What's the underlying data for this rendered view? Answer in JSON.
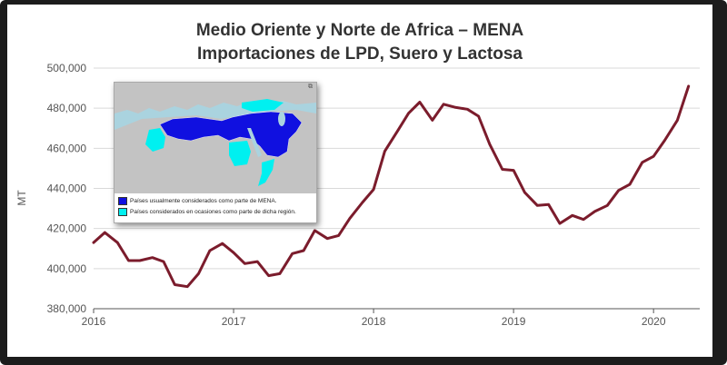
{
  "colors": {
    "line": "#7b1c2c",
    "grid": "#d9d9d9",
    "mena_core": "#1010e0",
    "mena_sometimes": "#00f0f0",
    "land": "#c3c3c3",
    "sea": "#aad3df"
  },
  "chart_data": {
    "type": "line",
    "title": "Medio Oriente y Norte de Africa – MENA",
    "subtitle": "Importaciones de LPD, Suero y Lactosa",
    "xlabel": "",
    "ylabel": "MT",
    "ylim": [
      380000,
      500000
    ],
    "yticks": [
      380000,
      400000,
      420000,
      440000,
      460000,
      480000,
      500000
    ],
    "ytick_labels": [
      "380,000",
      "400,000",
      "420,000",
      "440,000",
      "460,000",
      "480,000",
      "500,000"
    ],
    "xlim": [
      2016,
      2020.33
    ],
    "xticks": [
      2016,
      2017,
      2018,
      2019,
      2020
    ],
    "xtick_labels": [
      "2016",
      "2017",
      "2018",
      "2019",
      "2020"
    ],
    "grid": "horizontal",
    "series": [
      {
        "name": "",
        "x": [
          2016.0,
          2016.08,
          2016.17,
          2016.25,
          2016.33,
          2016.42,
          2016.5,
          2016.58,
          2016.67,
          2016.75,
          2016.83,
          2016.92,
          2017.0,
          2017.08,
          2017.17,
          2017.25,
          2017.33,
          2017.42,
          2017.5,
          2017.58,
          2017.67,
          2017.75,
          2017.83,
          2017.92,
          2018.0,
          2018.08,
          2018.17,
          2018.25,
          2018.33,
          2018.42,
          2018.5,
          2018.58,
          2018.67,
          2018.75,
          2018.83,
          2018.92,
          2019.0,
          2019.08,
          2019.17,
          2019.25,
          2019.33,
          2019.42,
          2019.5,
          2019.58,
          2019.67,
          2019.75,
          2019.83,
          2019.92,
          2020.0,
          2020.08,
          2020.17,
          2020.25
        ],
        "values": [
          413000,
          418000,
          413000,
          404000,
          404000,
          405500,
          403500,
          392000,
          391000,
          397500,
          409000,
          412500,
          408000,
          402500,
          403500,
          396500,
          397500,
          407500,
          409000,
          419000,
          415000,
          416500,
          425000,
          433000,
          439500,
          458500,
          468500,
          477500,
          483000,
          474000,
          482000,
          480500,
          479500,
          476000,
          462000,
          449500,
          449000,
          438000,
          431500,
          432000,
          422500,
          426500,
          424500,
          428500,
          431500,
          439000,
          442000,
          453000,
          456000,
          464000,
          474000,
          491000
        ]
      }
    ]
  },
  "inset": {
    "legend": [
      {
        "label": "Países usualmente considerados como parte de MENA.",
        "color_key": "mena_core"
      },
      {
        "label": "Países considerados en ocasiones como parte de dicha región.",
        "color_key": "mena_sometimes"
      }
    ]
  }
}
